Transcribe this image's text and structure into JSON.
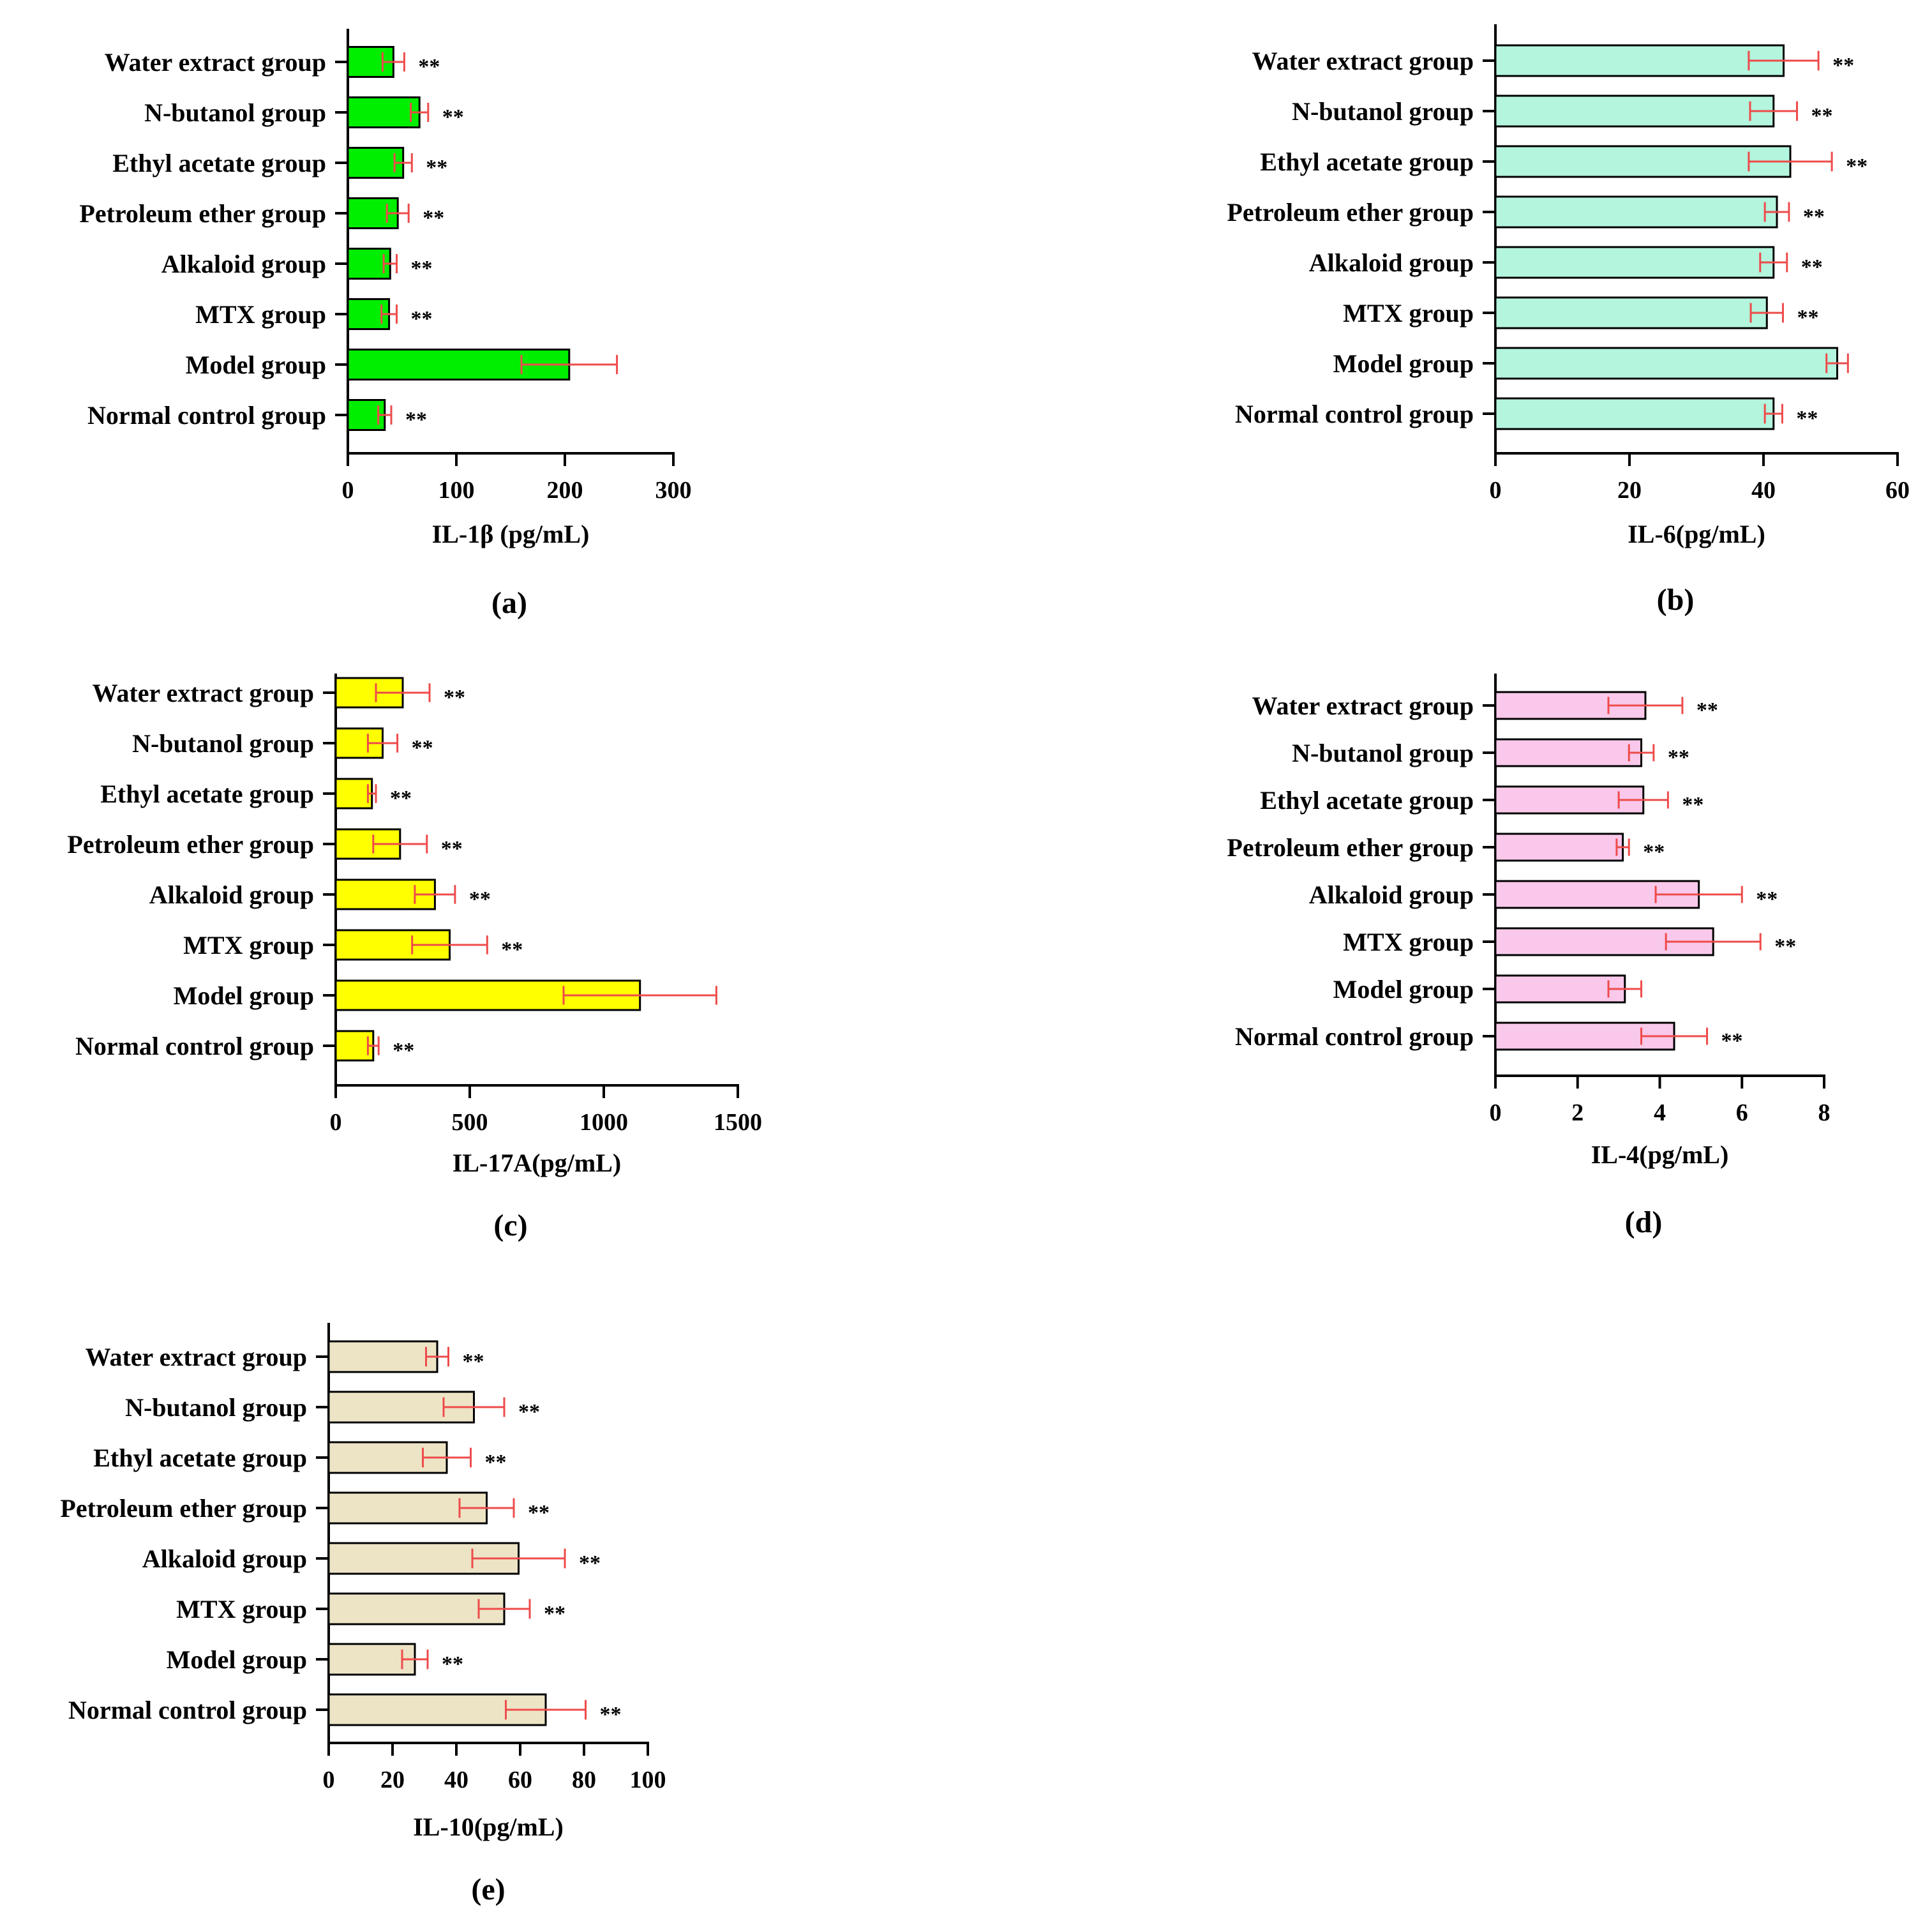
{
  "figure": {
    "panel_order": [
      "a",
      "b",
      "c",
      "d",
      "e"
    ]
  },
  "chart_data": [
    {
      "id": "a",
      "type": "bar",
      "orientation": "horizontal",
      "panel_label": "(a)",
      "xlabel": "IL-1β (pg/mL)",
      "xlim": [
        0,
        300
      ],
      "xticks": [
        0,
        100,
        200,
        300
      ],
      "bar_color": "#00ee00",
      "error_color": "#ee4b4b",
      "categories": [
        "Water extract group",
        "N-butanol group",
        "Ethyl acetate group",
        "Petroleum ether group",
        "Alkaloid group",
        "MTX group",
        "Model group",
        "Normal control group"
      ],
      "values": [
        42,
        66,
        51,
        46,
        39,
        38,
        204,
        34
      ],
      "errors": [
        10,
        8,
        8,
        10,
        6,
        7,
        44,
        6
      ],
      "significance": [
        "**",
        "**",
        "**",
        "**",
        "**",
        "**",
        "",
        "**"
      ]
    },
    {
      "id": "b",
      "type": "bar",
      "orientation": "horizontal",
      "panel_label": "(b)",
      "xlabel": "IL-6(pg/mL)",
      "xlim": [
        0,
        60
      ],
      "xticks": [
        0,
        20,
        40,
        60
      ],
      "bar_color": "#b3f5dd",
      "error_color": "#ee4b4b",
      "categories": [
        "Water extract group",
        "N-butanol group",
        "Ethyl acetate group",
        "Petroleum ether group",
        "Alkaloid group",
        "MTX group",
        "Model group",
        "Normal control group"
      ],
      "values": [
        43,
        41.5,
        44,
        42,
        41.5,
        40.5,
        51,
        41.5
      ],
      "errors": [
        5.2,
        3.5,
        6.2,
        1.8,
        2,
        2.4,
        1.6,
        1.3
      ],
      "significance": [
        "**",
        "**",
        "**",
        "**",
        "**",
        "**",
        "",
        "**"
      ]
    },
    {
      "id": "c",
      "type": "bar",
      "orientation": "horizontal",
      "panel_label": "(c)",
      "xlabel": "IL-17A(pg/mL)",
      "xlim": [
        0,
        1500
      ],
      "xticks": [
        0,
        500,
        1000,
        1500
      ],
      "bar_color": "#ffff00",
      "error_color": "#ee4b4b",
      "categories": [
        "Water extract group",
        "N-butanol group",
        "Ethyl acetate group",
        "Petroleum ether group",
        "Alkaloid group",
        "MTX group",
        "Model group",
        "Normal control group"
      ],
      "values": [
        250,
        175,
        135,
        240,
        370,
        425,
        1135,
        140
      ],
      "errors": [
        100,
        55,
        15,
        100,
        75,
        140,
        285,
        20
      ],
      "significance": [
        "**",
        "**",
        "**",
        "**",
        "**",
        "**",
        "",
        "**"
      ]
    },
    {
      "id": "d",
      "type": "bar",
      "orientation": "horizontal",
      "panel_label": "(d)",
      "xlabel": "IL-4(pg/mL)",
      "xlim": [
        0,
        8
      ],
      "xticks": [
        0,
        2,
        4,
        6,
        8
      ],
      "bar_color": "#f9c8ea",
      "error_color": "#ee4b4b",
      "categories": [
        "Water extract group",
        "N-butanol group",
        "Ethyl acetate group",
        "Petroleum ether group",
        "Alkaloid group",
        "MTX group",
        "Model group",
        "Normal control group"
      ],
      "values": [
        3.65,
        3.55,
        3.6,
        3.1,
        4.95,
        5.3,
        3.15,
        4.35
      ],
      "errors": [
        0.9,
        0.3,
        0.6,
        0.15,
        1.05,
        1.15,
        0.4,
        0.8
      ],
      "significance": [
        "**",
        "**",
        "**",
        "**",
        "**",
        "**",
        "",
        "**"
      ]
    },
    {
      "id": "e",
      "type": "bar",
      "orientation": "horizontal",
      "panel_label": "(e)",
      "xlabel": "IL-10(pg/mL)",
      "xlim": [
        0,
        100
      ],
      "xticks": [
        0,
        20,
        40,
        60,
        80,
        100
      ],
      "bar_color": "#ede4c6",
      "error_color": "#ee4b4b",
      "categories": [
        "Water extract group",
        "N-butanol group",
        "Ethyl acetate group",
        "Petroleum ether group",
        "Alkaloid group",
        "MTX group",
        "Model group",
        "Normal control group"
      ],
      "values": [
        34,
        45.5,
        37,
        49.5,
        59.5,
        55,
        27,
        68
      ],
      "errors": [
        3.5,
        9.5,
        7.5,
        8.5,
        14.5,
        8,
        4,
        12.5
      ],
      "significance": [
        "**",
        "**",
        "**",
        "**",
        "**",
        "**",
        "**",
        "**"
      ]
    }
  ]
}
